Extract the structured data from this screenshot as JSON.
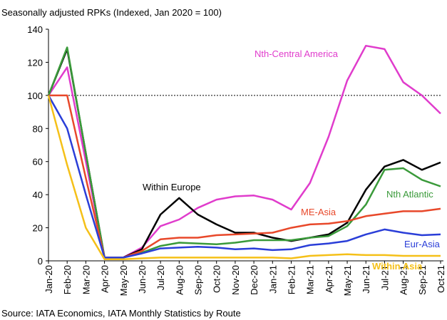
{
  "chart_data": {
    "type": "line",
    "title": "Seasonally adjusted RPKs (Indexed, Jan 2020 = 100)",
    "source": "Source: IATA Economics, IATA Monthly Statistics by Route",
    "categories": [
      "Jan-20",
      "Feb-20",
      "Mar-20",
      "Apr-20",
      "May-20",
      "Jun-20",
      "Jul-20",
      "Aug-20",
      "Sep-20",
      "Oct-20",
      "Nov-20",
      "Dec-20",
      "Jan-21",
      "Feb-21",
      "Mar-21",
      "Apr-21",
      "May-21",
      "Jun-21",
      "Jul-21",
      "Aug-21",
      "Sep-21",
      "Oct-21"
    ],
    "ylim": [
      0,
      140
    ],
    "yticks": [
      0,
      20,
      40,
      60,
      80,
      100,
      120,
      140
    ],
    "reference_line": 100,
    "series": [
      {
        "name": "Nth-Central America",
        "color": "#e03ccc",
        "values": [
          100,
          117,
          60,
          2,
          2,
          8,
          21,
          25,
          32,
          37,
          39,
          39.5,
          37,
          31,
          47,
          75,
          109,
          130,
          128,
          108,
          100,
          89
        ]
      },
      {
        "name": "Within Europe",
        "color": "#000000",
        "values": [
          100,
          128,
          65,
          2,
          2,
          7,
          28,
          38,
          28,
          22,
          17,
          17,
          14,
          12,
          14,
          16,
          23,
          43,
          57,
          61,
          55,
          59.5
        ]
      },
      {
        "name": "Nth Atlantic",
        "color": "#3a9a3a",
        "values": [
          100,
          129,
          65,
          2,
          2,
          5,
          9,
          11,
          10.5,
          10,
          11,
          12.5,
          12.5,
          12.5,
          14,
          15,
          21,
          34,
          55,
          56,
          49,
          45
        ]
      },
      {
        "name": "ME-Asia",
        "color": "#e8482a",
        "values": [
          100,
          100,
          50,
          2,
          2,
          6,
          13,
          14,
          14,
          15.5,
          16,
          16.5,
          17,
          20,
          22,
          22.5,
          24,
          27,
          28.5,
          30,
          30,
          31.5
        ]
      },
      {
        "name": "Eur-Asia",
        "color": "#2a3ed8",
        "values": [
          100,
          80,
          40,
          2,
          2,
          4.5,
          7.5,
          8,
          8.5,
          8,
          7,
          7.5,
          6.5,
          7,
          9.5,
          10.5,
          12,
          16,
          19,
          17,
          15.5,
          16
        ]
      },
      {
        "name": "Within Asia",
        "color": "#f5c018",
        "values": [
          100,
          58,
          20,
          1,
          1,
          1.5,
          2,
          2,
          2,
          2,
          2,
          2,
          2,
          1.5,
          3,
          3.5,
          4,
          3.5,
          3.5,
          3,
          3,
          3
        ]
      }
    ]
  }
}
